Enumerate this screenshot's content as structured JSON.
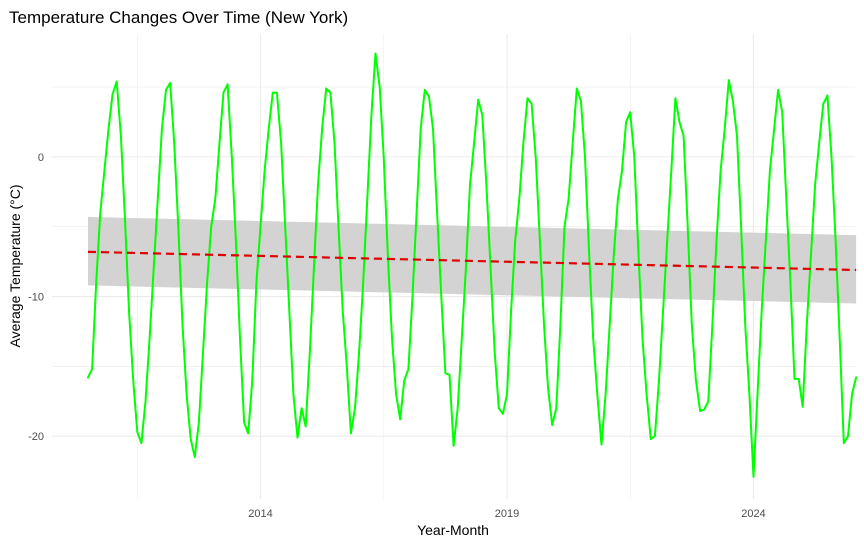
{
  "chart_data": {
    "type": "line",
    "title": "Temperature Changes Over Time (New York)",
    "xlabel": "Year-Month",
    "ylabel": "Average Temperature (°C)",
    "xlim": [
      2009.77,
      2026.06
    ],
    "ylim": [
      -24.5,
      8.8
    ],
    "x_major_ticks": [
      2014,
      2019,
      2024
    ],
    "x_minor_ticks": [
      2011.5,
      2016.5,
      2021.5
    ],
    "y_major_ticks": [
      -20,
      -10,
      0
    ],
    "y_minor_ticks": [
      -15,
      -5,
      5
    ],
    "tick_labels": {
      "x": [
        "2014",
        "2019",
        "2024"
      ],
      "y": [
        "-20",
        "-10",
        "0"
      ]
    },
    "grid": true,
    "legend": "none",
    "colors": {
      "series": "#00ff00",
      "trend": "#e00000",
      "band": "#d3d3d3",
      "grid": "#ebebeb"
    },
    "series": [
      {
        "color": "#00ff00",
        "style": "solid",
        "points": [
          [
            2010.5,
            -15.8
          ],
          [
            2010.583,
            -15.2
          ],
          [
            2010.667,
            -9.0
          ],
          [
            2010.75,
            -4.0
          ],
          [
            2010.833,
            -1.0
          ],
          [
            2010.917,
            2.0
          ],
          [
            2011.0,
            4.5
          ],
          [
            2011.083,
            5.4
          ],
          [
            2011.167,
            1.5
          ],
          [
            2011.25,
            -4.5
          ],
          [
            2011.333,
            -11.0
          ],
          [
            2011.417,
            -16.0
          ],
          [
            2011.5,
            -19.7
          ],
          [
            2011.583,
            -20.5
          ],
          [
            2011.667,
            -17.5
          ],
          [
            2011.75,
            -13.0
          ],
          [
            2011.833,
            -8.0
          ],
          [
            2011.917,
            -3.0
          ],
          [
            2012.0,
            2.0
          ],
          [
            2012.083,
            4.8
          ],
          [
            2012.167,
            5.3
          ],
          [
            2012.25,
            1.0
          ],
          [
            2012.333,
            -5.0
          ],
          [
            2012.417,
            -12.0
          ],
          [
            2012.5,
            -17.0
          ],
          [
            2012.583,
            -20.2
          ],
          [
            2012.667,
            -21.5
          ],
          [
            2012.75,
            -19.0
          ],
          [
            2012.833,
            -14.0
          ],
          [
            2012.917,
            -9.0
          ],
          [
            2013.0,
            -5.0
          ],
          [
            2013.083,
            -3.0
          ],
          [
            2013.167,
            1.0
          ],
          [
            2013.25,
            4.6
          ],
          [
            2013.333,
            5.2
          ],
          [
            2013.417,
            0.0
          ],
          [
            2013.5,
            -6.0
          ],
          [
            2013.583,
            -13.0
          ],
          [
            2013.667,
            -19.0
          ],
          [
            2013.75,
            -19.8
          ],
          [
            2013.833,
            -16.0
          ],
          [
            2013.917,
            -9.0
          ],
          [
            2014.0,
            -5.0
          ],
          [
            2014.083,
            -1.0
          ],
          [
            2014.167,
            2.0
          ],
          [
            2014.25,
            4.6
          ],
          [
            2014.333,
            4.6
          ],
          [
            2014.417,
            1.0
          ],
          [
            2014.5,
            -5.0
          ],
          [
            2014.583,
            -11.0
          ],
          [
            2014.667,
            -17.0
          ],
          [
            2014.75,
            -20.1
          ],
          [
            2014.833,
            -18.0
          ],
          [
            2014.917,
            -19.3
          ],
          [
            2015.0,
            -14.0
          ],
          [
            2015.083,
            -8.0
          ],
          [
            2015.167,
            -2.0
          ],
          [
            2015.25,
            2.0
          ],
          [
            2015.333,
            4.9
          ],
          [
            2015.417,
            4.6
          ],
          [
            2015.5,
            1.0
          ],
          [
            2015.583,
            -5.0
          ],
          [
            2015.667,
            -11.0
          ],
          [
            2015.75,
            -15.0
          ],
          [
            2015.833,
            -19.8
          ],
          [
            2015.917,
            -18.0
          ],
          [
            2016.0,
            -14.0
          ],
          [
            2016.083,
            -9.0
          ],
          [
            2016.167,
            -3.0
          ],
          [
            2016.25,
            3.0
          ],
          [
            2016.333,
            7.4
          ],
          [
            2016.417,
            5.0
          ],
          [
            2016.5,
            0.0
          ],
          [
            2016.583,
            -7.0
          ],
          [
            2016.667,
            -13.0
          ],
          [
            2016.75,
            -17.0
          ],
          [
            2016.833,
            -18.8
          ],
          [
            2016.917,
            -16.0
          ],
          [
            2017.0,
            -15.2
          ],
          [
            2017.083,
            -10.0
          ],
          [
            2017.167,
            -4.0
          ],
          [
            2017.25,
            2.0
          ],
          [
            2017.333,
            4.8
          ],
          [
            2017.417,
            4.3
          ],
          [
            2017.5,
            2.0
          ],
          [
            2017.583,
            -4.0
          ],
          [
            2017.667,
            -10.0
          ],
          [
            2017.75,
            -15.5
          ],
          [
            2017.833,
            -15.6
          ],
          [
            2017.917,
            -20.7
          ],
          [
            2018.0,
            -18.0
          ],
          [
            2018.083,
            -13.0
          ],
          [
            2018.167,
            -8.0
          ],
          [
            2018.25,
            -2.0
          ],
          [
            2018.333,
            1.0
          ],
          [
            2018.417,
            4.1
          ],
          [
            2018.5,
            3.0
          ],
          [
            2018.583,
            -2.0
          ],
          [
            2018.667,
            -8.0
          ],
          [
            2018.75,
            -14.0
          ],
          [
            2018.833,
            -18.0
          ],
          [
            2018.917,
            -18.4
          ],
          [
            2019.0,
            -17.0
          ],
          [
            2019.083,
            -11.0
          ],
          [
            2019.167,
            -6.0
          ],
          [
            2019.25,
            -3.0
          ],
          [
            2019.333,
            1.0
          ],
          [
            2019.417,
            4.2
          ],
          [
            2019.5,
            3.8
          ],
          [
            2019.583,
            0.0
          ],
          [
            2019.667,
            -6.0
          ],
          [
            2019.75,
            -12.0
          ],
          [
            2019.833,
            -16.5
          ],
          [
            2019.917,
            -19.2
          ],
          [
            2020.0,
            -18.0
          ],
          [
            2020.083,
            -12.0
          ],
          [
            2020.167,
            -5.0
          ],
          [
            2020.25,
            -3.0
          ],
          [
            2020.333,
            1.0
          ],
          [
            2020.417,
            4.9
          ],
          [
            2020.5,
            4.0
          ],
          [
            2020.583,
            0.0
          ],
          [
            2020.667,
            -7.0
          ],
          [
            2020.75,
            -13.0
          ],
          [
            2020.833,
            -17.0
          ],
          [
            2020.917,
            -20.6
          ],
          [
            2021.0,
            -17.0
          ],
          [
            2021.083,
            -12.0
          ],
          [
            2021.167,
            -7.0
          ],
          [
            2021.25,
            -3.0
          ],
          [
            2021.333,
            -1.0
          ],
          [
            2021.417,
            2.5
          ],
          [
            2021.5,
            3.2
          ],
          [
            2021.583,
            0.0
          ],
          [
            2021.667,
            -7.0
          ],
          [
            2021.75,
            -13.0
          ],
          [
            2021.833,
            -17.0
          ],
          [
            2021.917,
            -20.2
          ],
          [
            2022.0,
            -20.0
          ],
          [
            2022.083,
            -16.0
          ],
          [
            2022.167,
            -11.0
          ],
          [
            2022.25,
            -6.0
          ],
          [
            2022.333,
            -1.0
          ],
          [
            2022.417,
            4.2
          ],
          [
            2022.5,
            2.5
          ],
          [
            2022.583,
            1.5
          ],
          [
            2022.667,
            -5.0
          ],
          [
            2022.75,
            -12.0
          ],
          [
            2022.833,
            -16.0
          ],
          [
            2022.917,
            -18.2
          ],
          [
            2023.0,
            -18.1
          ],
          [
            2023.083,
            -17.5
          ],
          [
            2023.167,
            -12.0
          ],
          [
            2023.25,
            -6.0
          ],
          [
            2023.333,
            -1.0
          ],
          [
            2023.417,
            2.0
          ],
          [
            2023.5,
            5.5
          ],
          [
            2023.583,
            4.0
          ],
          [
            2023.667,
            1.5
          ],
          [
            2023.75,
            -5.0
          ],
          [
            2023.833,
            -12.0
          ],
          [
            2023.917,
            -17.0
          ],
          [
            2024.0,
            -22.9
          ],
          [
            2024.083,
            -17.0
          ],
          [
            2024.167,
            -11.0
          ],
          [
            2024.25,
            -6.0
          ],
          [
            2024.333,
            -1.0
          ],
          [
            2024.417,
            1.9
          ],
          [
            2024.5,
            4.8
          ],
          [
            2024.583,
            3.2
          ],
          [
            2024.667,
            -3.0
          ],
          [
            2024.75,
            -9.0
          ],
          [
            2024.833,
            -15.9
          ],
          [
            2024.917,
            -15.9
          ],
          [
            2025.0,
            -17.9
          ],
          [
            2025.083,
            -12.0
          ],
          [
            2025.167,
            -7.0
          ],
          [
            2025.25,
            -2.0
          ],
          [
            2025.333,
            1.0
          ],
          [
            2025.417,
            3.8
          ],
          [
            2025.5,
            4.4
          ],
          [
            2025.583,
            0.0
          ],
          [
            2025.667,
            -6.0
          ],
          [
            2025.75,
            -13.0
          ],
          [
            2025.833,
            -20.5
          ],
          [
            2025.917,
            -20.0
          ],
          [
            2026.0,
            -17.0
          ],
          [
            2026.083,
            -15.8
          ]
        ]
      }
    ],
    "trend": {
      "method": "linear",
      "color": "#e00000",
      "style": "dashed",
      "x": [
        2010.5,
        2026.083
      ],
      "y": [
        -6.8,
        -8.1
      ],
      "band_lower": [
        -9.2,
        -10.5
      ],
      "band_upper": [
        -4.3,
        -5.6
      ]
    }
  }
}
